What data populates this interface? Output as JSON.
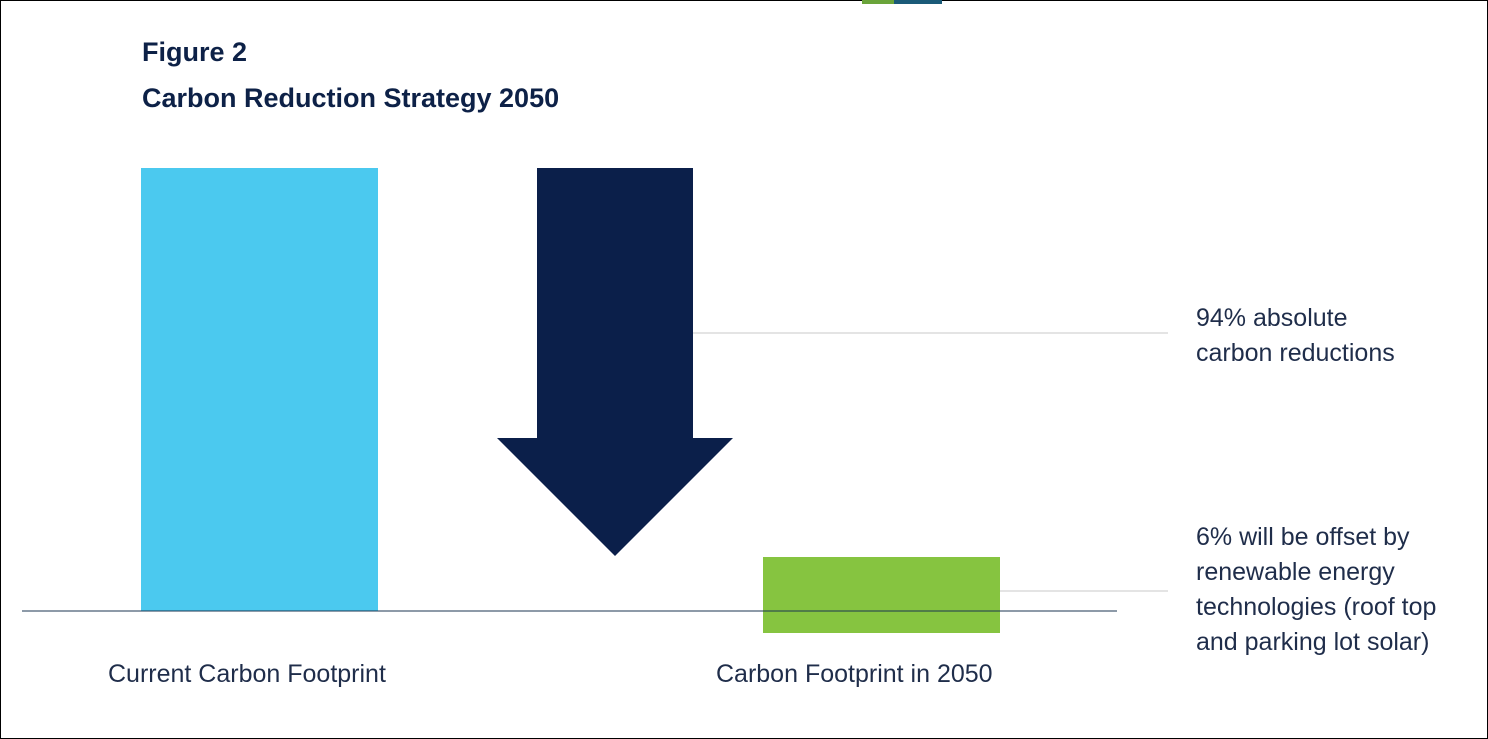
{
  "figure": {
    "label": "Figure 2",
    "title": "Carbon Reduction Strategy 2050"
  },
  "annotations": {
    "reduction": [
      "94% absolute",
      "carbon reductions"
    ],
    "offset": [
      "6% will be offset by",
      "renewable energy",
      "technologies (roof top",
      "and parking lot solar)"
    ]
  },
  "colors": {
    "current": "#4bc9ef",
    "arrow": "#0b1f4a",
    "future": "#86c440",
    "text": "#1f2d4a",
    "title": "#0d2147"
  },
  "chart_data": {
    "type": "bar",
    "categories": [
      "Current Carbon Footprint",
      "Carbon Footprint in 2050"
    ],
    "values": [
      100,
      6
    ],
    "ylim": [
      0,
      100
    ],
    "grid": false,
    "legend": "none",
    "annotations": [
      {
        "target": "reduction",
        "value": 94,
        "text": "94% absolute carbon reductions"
      },
      {
        "target": "Carbon Footprint in 2050",
        "value": 6,
        "text": "6% will be offset by renewable energy technologies (roof top and parking lot solar)"
      }
    ]
  }
}
